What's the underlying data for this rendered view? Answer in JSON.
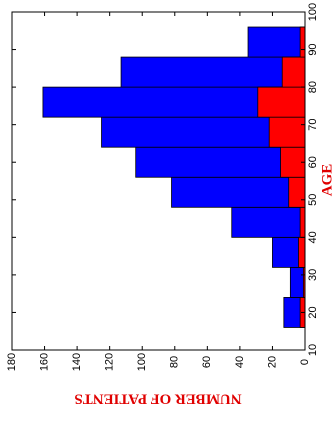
{
  "chart_data": {
    "type": "histogram",
    "xlabel": "AGE",
    "ylabel": "NUMBER OF PATIENTS",
    "bins": [
      16,
      24,
      32,
      40,
      48,
      56,
      64,
      72,
      80,
      88,
      96
    ],
    "series": [
      {
        "color": "#0000ff",
        "values": [
          13,
          9,
          20,
          45,
          82,
          104,
          125,
          161,
          113,
          35
        ]
      },
      {
        "color": "#ff0000",
        "values": [
          3,
          1,
          4,
          3,
          10,
          15,
          22,
          29,
          14,
          3
        ]
      }
    ],
    "xlim": [
      10,
      100
    ],
    "xticks": [
      10,
      20,
      30,
      40,
      50,
      60,
      70,
      80,
      90,
      100
    ],
    "ylim": [
      0,
      180
    ],
    "yticks": [
      0,
      20,
      40,
      60,
      80,
      100,
      120,
      140,
      160,
      180
    ]
  }
}
